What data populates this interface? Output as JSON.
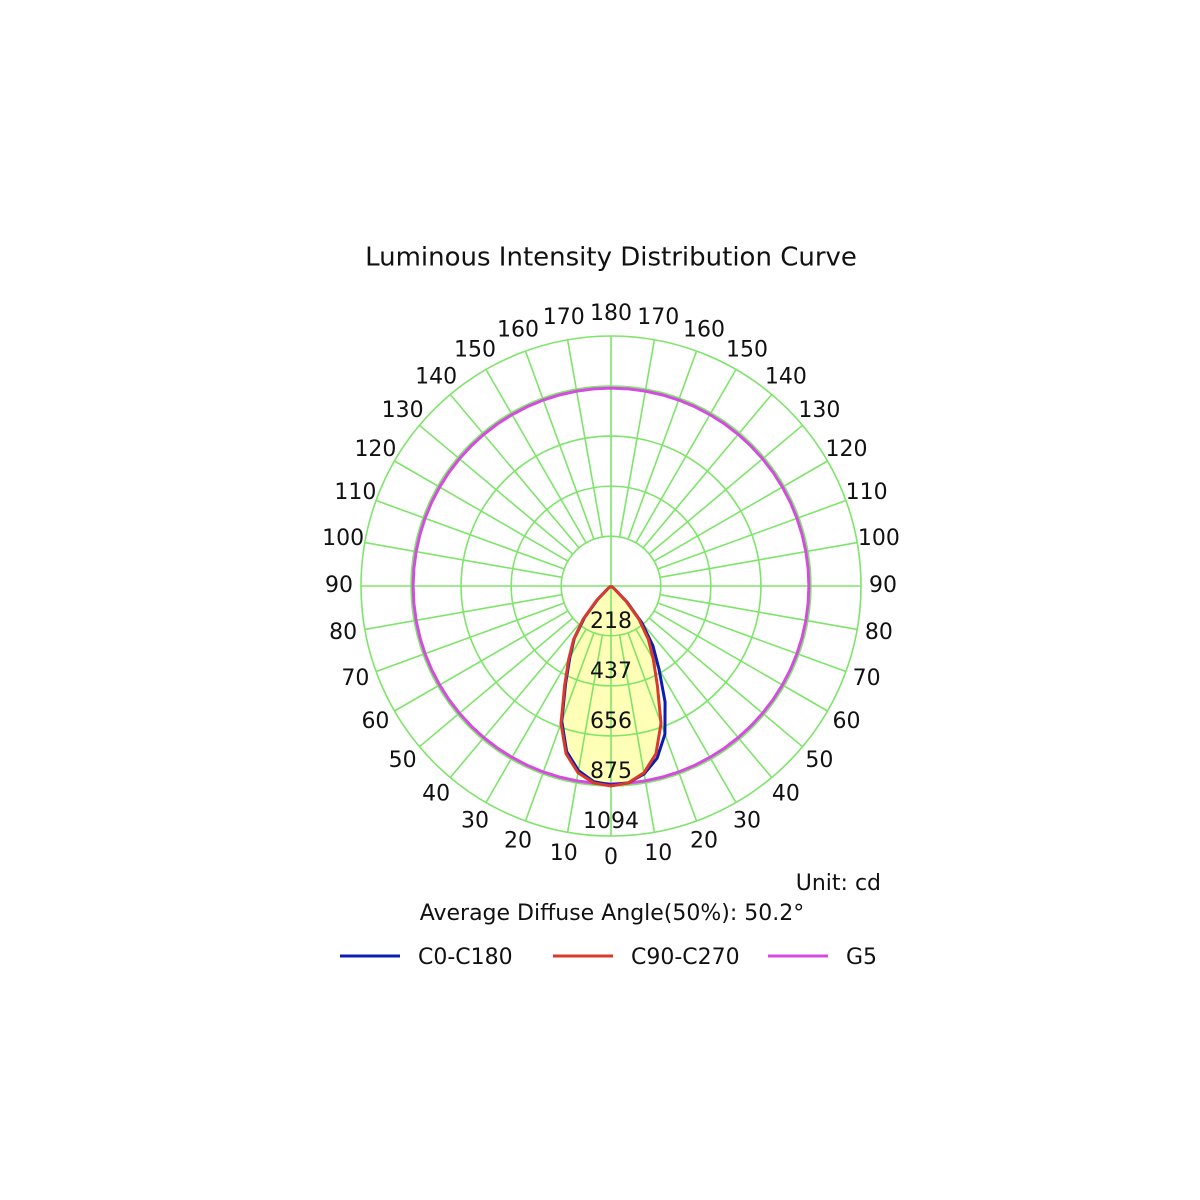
{
  "chart_data": {
    "type": "polar",
    "title": "Luminous Intensity Distribution Curve",
    "unit_label": "Unit: cd",
    "annotation": "Average Diffuse Angle(50%): 50.2°",
    "x": [
      -180,
      -175,
      -170,
      -165,
      -160,
      -155,
      -150,
      -145,
      -140,
      -135,
      -130,
      -125,
      -120,
      -115,
      -110,
      -105,
      -100,
      -95,
      -90,
      -85,
      -80,
      -75,
      -70,
      -65,
      -60,
      -55,
      -50,
      -45,
      -40,
      -35,
      -30,
      -25,
      -20,
      -15,
      -10,
      -5,
      0,
      5,
      10,
      15,
      20,
      25,
      30,
      35,
      40,
      45,
      50,
      55,
      60,
      65,
      70,
      75,
      80,
      85,
      90,
      95,
      100,
      105,
      110,
      115,
      120,
      125,
      130,
      135,
      140,
      145,
      150,
      155,
      160,
      165,
      170,
      175,
      180
    ],
    "series": [
      {
        "name": "C0-C180",
        "color": "#0a1fb0",
        "values": [
          0,
          0,
          0,
          0,
          0,
          0,
          0,
          0,
          0,
          0,
          0,
          0,
          0,
          0,
          0,
          0,
          0,
          0,
          0,
          0,
          0,
          0,
          0,
          0,
          0,
          0,
          20,
          100,
          210,
          320,
          420,
          560,
          690,
          780,
          835,
          865,
          870,
          860,
          820,
          750,
          630,
          470,
          360,
          280,
          180,
          80,
          15,
          0,
          0,
          0,
          0,
          0,
          0,
          0,
          0,
          0,
          0,
          0,
          0,
          0,
          0,
          0,
          0,
          0,
          0,
          0,
          0,
          0,
          0,
          0,
          0,
          0,
          0
        ]
      },
      {
        "name": "C90-C270",
        "color": "#d93a2b",
        "values": [
          0,
          0,
          0,
          0,
          0,
          0,
          0,
          0,
          0,
          0,
          0,
          0,
          0,
          0,
          0,
          0,
          0,
          0,
          0,
          0,
          0,
          0,
          0,
          0,
          0,
          0,
          20,
          90,
          190,
          285,
          370,
          480,
          640,
          760,
          830,
          865,
          875,
          865,
          830,
          760,
          640,
          480,
          370,
          285,
          190,
          90,
          20,
          0,
          0,
          0,
          0,
          0,
          0,
          0,
          0,
          0,
          0,
          0,
          0,
          0,
          0,
          0,
          0,
          0,
          0,
          0,
          0,
          0,
          0,
          0,
          0,
          0,
          0
        ]
      },
      {
        "name": "G5",
        "color": "#d44be0",
        "values": [
          866,
          866,
          866,
          866,
          866,
          866,
          866,
          866,
          866,
          866,
          866,
          866,
          866,
          866,
          866,
          866,
          866,
          866,
          866,
          866,
          866,
          866,
          866,
          866,
          866,
          866,
          866,
          866,
          866,
          866,
          866,
          866,
          866,
          866,
          866,
          866,
          866,
          866,
          866,
          866,
          866,
          866,
          866,
          866,
          866,
          866,
          866,
          866,
          866,
          866,
          866,
          866,
          866,
          866,
          866,
          866,
          866,
          866,
          866,
          866,
          866,
          866,
          866,
          866,
          866,
          866,
          866,
          866,
          866,
          866,
          866,
          866,
          866
        ]
      }
    ],
    "fill_color": "#ffffb8",
    "rlim": [
      0,
      1094
    ],
    "rticks": [
      218,
      437,
      656,
      875,
      1094
    ],
    "thetaticks": [
      {
        "value": -170,
        "label": "170"
      },
      {
        "value": -160,
        "label": "160"
      },
      {
        "value": -150,
        "label": "150"
      },
      {
        "value": -140,
        "label": "140"
      },
      {
        "value": -130,
        "label": "130"
      },
      {
        "value": -120,
        "label": "120"
      },
      {
        "value": -110,
        "label": "110"
      },
      {
        "value": -100,
        "label": "100"
      },
      {
        "value": -90,
        "label": "90"
      },
      {
        "value": -80,
        "label": "80"
      },
      {
        "value": -70,
        "label": "70"
      },
      {
        "value": -60,
        "label": "60"
      },
      {
        "value": -50,
        "label": "50"
      },
      {
        "value": -40,
        "label": "40"
      },
      {
        "value": -30,
        "label": "30"
      },
      {
        "value": -20,
        "label": "20"
      },
      {
        "value": -10,
        "label": "10"
      },
      0,
      10,
      20,
      30,
      40,
      50,
      60,
      70,
      80,
      90,
      100,
      110,
      120,
      130,
      140,
      150,
      160,
      170,
      180
    ],
    "grid": true
  }
}
